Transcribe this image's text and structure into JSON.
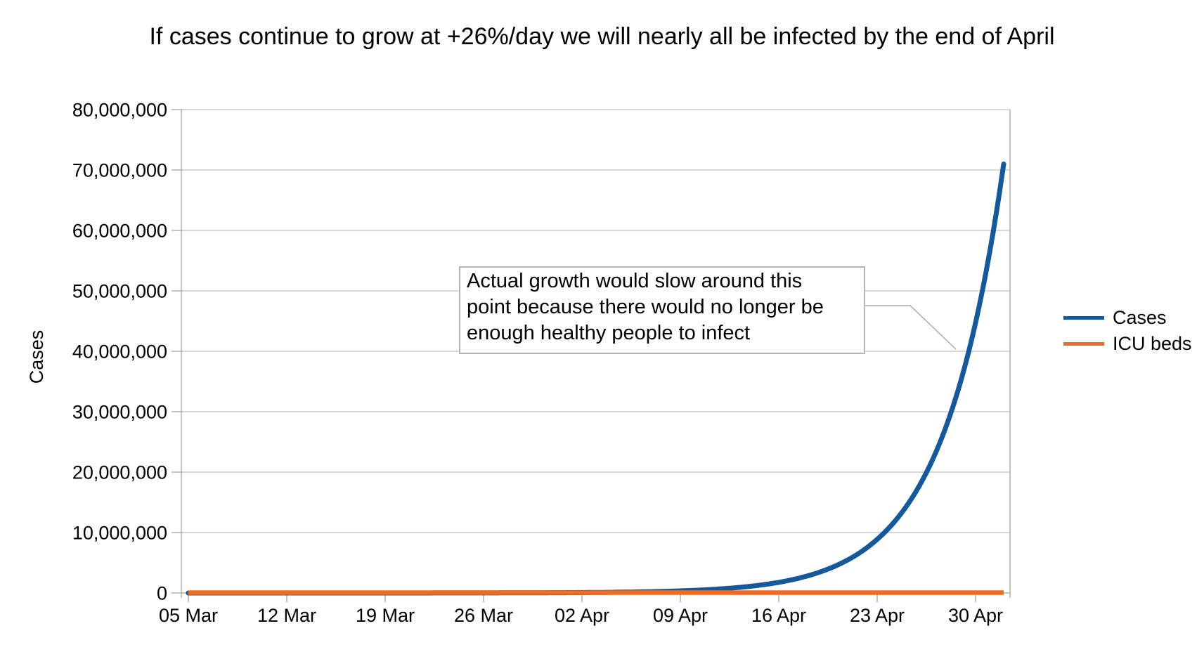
{
  "title": "If cases continue to grow at +26%/day we will nearly all be infected by the end of April",
  "axes": {
    "y_title": "Cases"
  },
  "colors": {
    "cases_line": "#15599b",
    "icu_line": "#f06b22",
    "gridline": "#cbcbcb",
    "axis_line": "#b0b0b0",
    "tick_mark": "#b0b0b0",
    "callout_line": "#a9a9a9",
    "annotation_border": "#b5b5b5",
    "text": "#000000",
    "background": "#ffffff"
  },
  "legend": {
    "position": "right",
    "items": [
      {
        "label": "Cases",
        "color": "#15599b"
      },
      {
        "label": "ICU beds",
        "color": "#f06b22"
      }
    ]
  },
  "annotation": {
    "lines": [
      "Actual growth would slow around this",
      "point because there would no longer be",
      "enough healthy people to infect"
    ],
    "points_to": "Cases curve near 40,000,000"
  },
  "chart_data": {
    "type": "line",
    "title": "If cases continue to grow at +26%/day we will nearly all be infected by the end of April",
    "xlabel": "",
    "ylabel": "Cases",
    "ylim": [
      0,
      80000000
    ],
    "grid": "horizontal",
    "legend_position": "right",
    "y_tick_labels": [
      "0",
      "10,000,000",
      "20,000,000",
      "30,000,000",
      "40,000,000",
      "50,000,000",
      "60,000,000",
      "70,000,000",
      "80,000,000"
    ],
    "y_tick_values": [
      0,
      10000000,
      20000000,
      30000000,
      40000000,
      50000000,
      60000000,
      70000000,
      80000000
    ],
    "x_tick_labels": [
      "05 Mar",
      "12 Mar",
      "19 Mar",
      "26 Mar",
      "02 Apr",
      "09 Apr",
      "16 Apr",
      "23 Apr",
      "30 Apr"
    ],
    "x_tick_days": [
      0,
      7,
      14,
      21,
      28,
      35,
      42,
      49,
      56
    ],
    "series": [
      {
        "name": "Cases",
        "color": "#15599b",
        "model": {
          "type": "exponential",
          "daily_growth_pct": 26,
          "start_day": 0,
          "end_day": 58,
          "end_value": 71000000
        },
        "sample_days": [
          0,
          7,
          14,
          21,
          28,
          35,
          42,
          49,
          56,
          58
        ],
        "values_approx": [
          107,
          540,
          2720,
          13700,
          69000,
          347000,
          1750000,
          8840000,
          44600000,
          71000000
        ]
      },
      {
        "name": "ICU beds",
        "color": "#f06b22",
        "model": {
          "type": "flat",
          "value_approx": 0,
          "start_day": 0,
          "end_day": 58
        },
        "sample_days": [
          0,
          7,
          14,
          21,
          28,
          35,
          42,
          49,
          56,
          58
        ],
        "values_approx": [
          0,
          0,
          0,
          0,
          0,
          0,
          0,
          0,
          0,
          0
        ]
      }
    ]
  }
}
